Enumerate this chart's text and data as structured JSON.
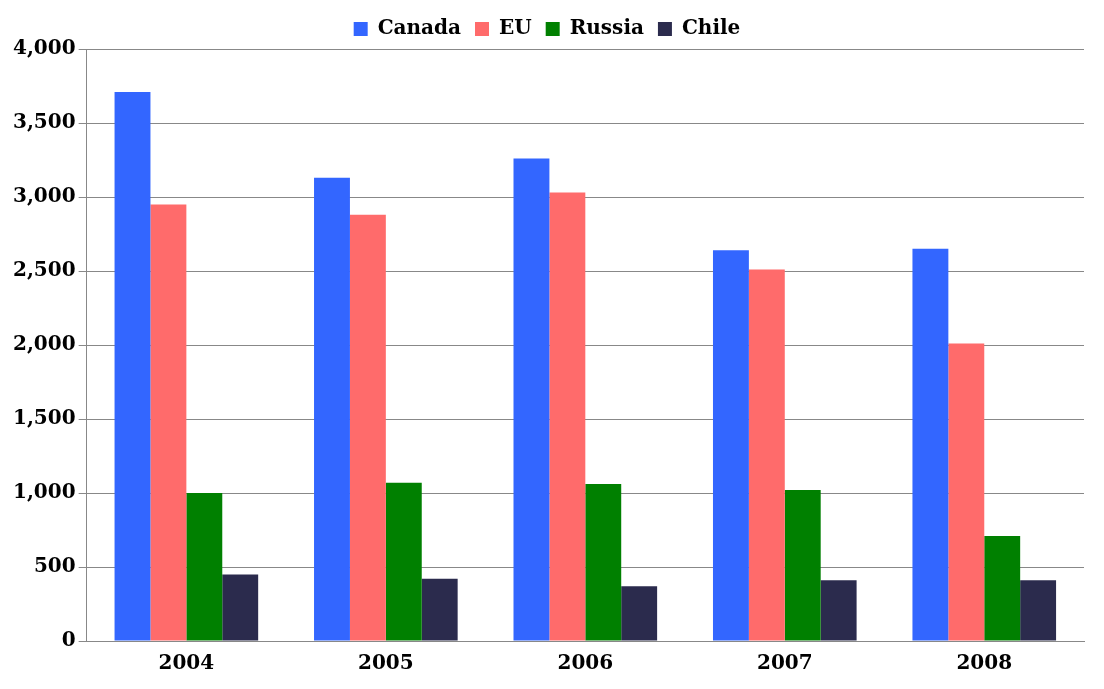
{
  "chart_data": {
    "type": "bar",
    "categories": [
      "2004",
      "2005",
      "2006",
      "2007",
      "2008"
    ],
    "series": [
      {
        "name": "Canada",
        "color": "#3366ff",
        "values": [
          3710,
          3130,
          3260,
          2640,
          2650
        ]
      },
      {
        "name": "EU",
        "color": "#ff6b6b",
        "values": [
          2950,
          2880,
          3030,
          2510,
          2010
        ]
      },
      {
        "name": "Russia",
        "color": "#008000",
        "values": [
          1000,
          1070,
          1060,
          1020,
          710
        ]
      },
      {
        "name": "Chile",
        "color": "#2b2b4d",
        "values": [
          450,
          420,
          370,
          410,
          410
        ]
      }
    ],
    "ylim": [
      0,
      4000
    ],
    "yticks": [
      0,
      500,
      {
        "value": 1000,
        "label": "1,000"
      },
      {
        "value": 1500,
        "label": "1,500"
      },
      {
        "value": 2000,
        "label": "2,000"
      },
      {
        "value": 2500,
        "label": "2,500"
      },
      {
        "value": 3000,
        "label": "3,000"
      },
      {
        "value": 3500,
        "label": "3,500"
      },
      {
        "value": 4000,
        "label": "4,000"
      }
    ],
    "grid": "y",
    "legend": "top"
  }
}
